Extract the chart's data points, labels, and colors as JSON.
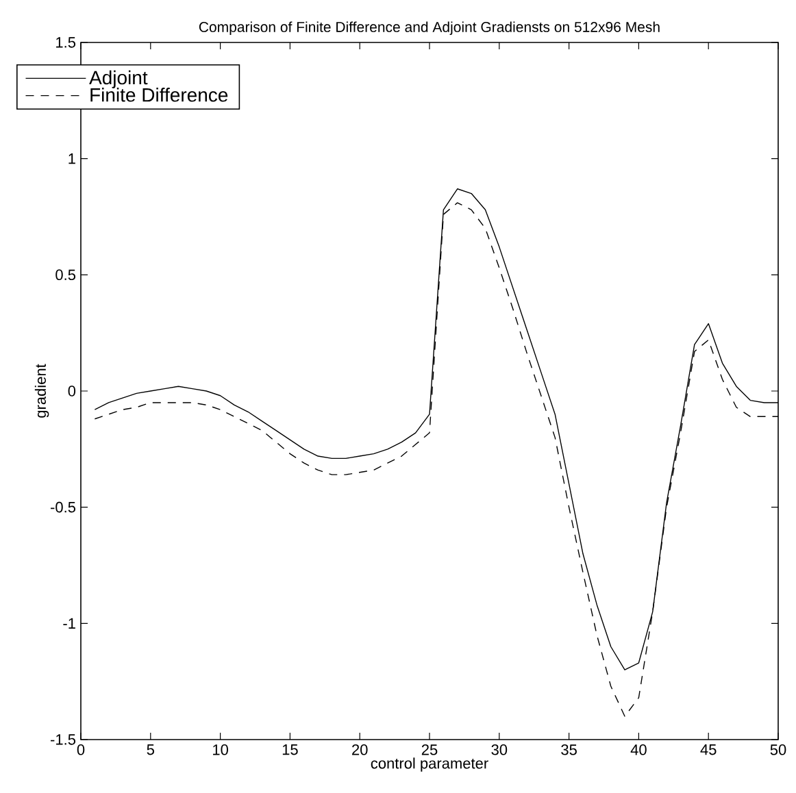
{
  "chart_data": {
    "type": "line",
    "title": "Comparison of Finite Difference and Adjoint Gradiensts on 512x96 Mesh",
    "xlabel": "control parameter",
    "ylabel": "gradient",
    "x": [
      1,
      2,
      3,
      4,
      5,
      6,
      7,
      8,
      9,
      10,
      11,
      12,
      13,
      14,
      15,
      16,
      17,
      18,
      19,
      20,
      21,
      22,
      23,
      24,
      25,
      26,
      27,
      28,
      29,
      30,
      31,
      32,
      33,
      34,
      35,
      36,
      37,
      38,
      39,
      40,
      41,
      42,
      43,
      44,
      45,
      46,
      47,
      48,
      49,
      50
    ],
    "series": [
      {
        "name": "Adjoint",
        "color": "#000000",
        "line_style": "solid",
        "values": [
          -0.08,
          -0.05,
          -0.03,
          -0.01,
          0.0,
          0.01,
          0.02,
          0.01,
          0.0,
          -0.02,
          -0.06,
          -0.09,
          -0.13,
          -0.17,
          -0.21,
          -0.25,
          -0.28,
          -0.29,
          -0.29,
          -0.28,
          -0.27,
          -0.25,
          -0.22,
          -0.18,
          -0.1,
          0.78,
          0.87,
          0.85,
          0.78,
          0.62,
          0.44,
          0.26,
          0.08,
          -0.1,
          -0.4,
          -0.7,
          -0.92,
          -1.1,
          -1.2,
          -1.17,
          -0.95,
          -0.48,
          -0.15,
          0.2,
          0.29,
          0.12,
          0.02,
          -0.04,
          -0.05,
          -0.05
        ]
      },
      {
        "name": "Finite Difference",
        "color": "#000000",
        "line_style": "dashed",
        "values": [
          -0.12,
          -0.1,
          -0.08,
          -0.07,
          -0.05,
          -0.05,
          -0.05,
          -0.05,
          -0.06,
          -0.08,
          -0.11,
          -0.14,
          -0.17,
          -0.22,
          -0.27,
          -0.31,
          -0.34,
          -0.36,
          -0.36,
          -0.35,
          -0.34,
          -0.31,
          -0.28,
          -0.23,
          -0.18,
          0.76,
          0.81,
          0.78,
          0.7,
          0.53,
          0.35,
          0.16,
          -0.02,
          -0.2,
          -0.5,
          -0.78,
          -1.05,
          -1.27,
          -1.4,
          -1.32,
          -0.95,
          -0.5,
          -0.18,
          0.17,
          0.22,
          0.05,
          -0.07,
          -0.11,
          -0.11,
          -0.11
        ]
      }
    ],
    "xlim": [
      0,
      50
    ],
    "ylim": [
      -1.5,
      1.5
    ],
    "xticks": [
      0,
      5,
      10,
      15,
      20,
      25,
      30,
      35,
      40,
      45,
      50
    ],
    "yticks": [
      -1.5,
      -1,
      -0.5,
      0,
      0.5,
      1,
      1.5
    ],
    "grid": false,
    "legend": "top left",
    "marker": "none"
  }
}
